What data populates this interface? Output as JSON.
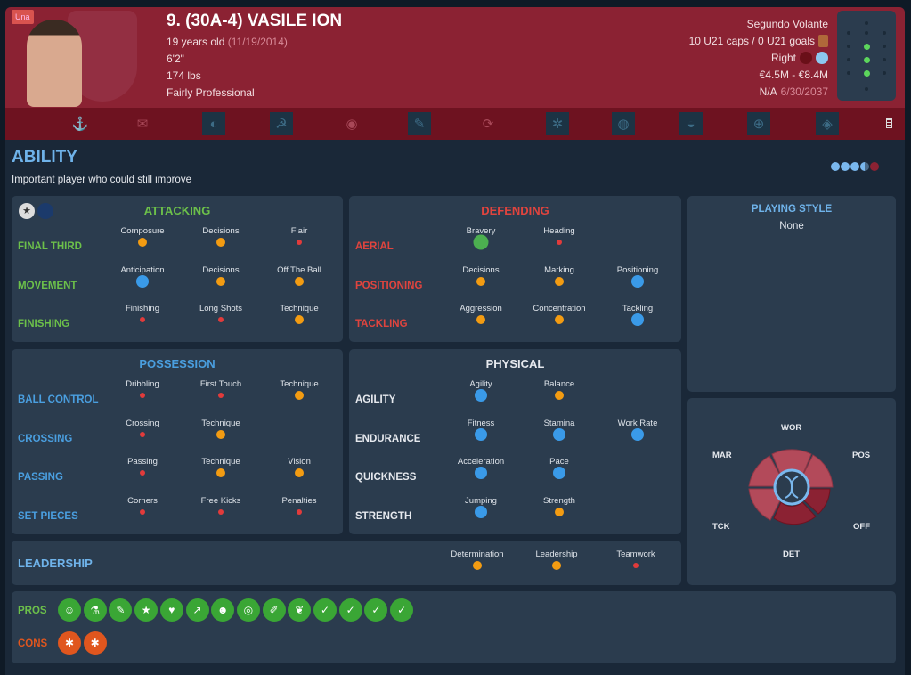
{
  "header": {
    "tag": "Una",
    "title": "9. (30A-4) VASILE ION",
    "age": "19 years old",
    "dob": "(11/19/2014)",
    "height": "6'2\"",
    "weight": "174 lbs",
    "personality": "Fairly Professional",
    "position": "Segundo Volante",
    "caps": "10 U21 caps / 0 U21 goals",
    "foot": "Right",
    "value": "€4.5M - €8.4M",
    "contract_status": "N/A",
    "contract_end": "6/30/2037"
  },
  "ability": {
    "title": "ABILITY",
    "description": "Important player who could still improve",
    "stars": 4.5
  },
  "sections": {
    "attacking": {
      "title": "ATTACKING",
      "color": "#6cc04a",
      "rows": [
        {
          "label": "FINAL THIRD",
          "attrs": [
            {
              "name": "Composure",
              "level": "ok"
            },
            {
              "name": "Decisions",
              "level": "ok"
            },
            {
              "name": "Flair",
              "level": "weak"
            }
          ]
        },
        {
          "label": "MOVEMENT",
          "attrs": [
            {
              "name": "Anticipation",
              "level": "good"
            },
            {
              "name": "Decisions",
              "level": "ok"
            },
            {
              "name": "Off The Ball",
              "level": "ok"
            }
          ]
        },
        {
          "label": "FINISHING",
          "attrs": [
            {
              "name": "Finishing",
              "level": "weak"
            },
            {
              "name": "Long Shots",
              "level": "weak"
            },
            {
              "name": "Technique",
              "level": "ok"
            }
          ]
        }
      ]
    },
    "defending": {
      "title": "DEFENDING",
      "color": "#e0443e",
      "rows": [
        {
          "label": "AERIAL",
          "attrs": [
            {
              "name": "Bravery",
              "level": "great"
            },
            {
              "name": "Heading",
              "level": "weak"
            }
          ]
        },
        {
          "label": "POSITIONING",
          "attrs": [
            {
              "name": "Decisions",
              "level": "ok"
            },
            {
              "name": "Marking",
              "level": "ok"
            },
            {
              "name": "Positioning",
              "level": "good"
            }
          ]
        },
        {
          "label": "TACKLING",
          "attrs": [
            {
              "name": "Aggression",
              "level": "ok"
            },
            {
              "name": "Concentration",
              "level": "ok"
            },
            {
              "name": "Tackling",
              "level": "good"
            }
          ]
        }
      ]
    },
    "possession": {
      "title": "POSSESSION",
      "color": "#4a9fe0",
      "rows": [
        {
          "label": "BALL CONTROL",
          "attrs": [
            {
              "name": "Dribbling",
              "level": "weak"
            },
            {
              "name": "First Touch",
              "level": "weak"
            },
            {
              "name": "Technique",
              "level": "ok"
            }
          ]
        },
        {
          "label": "CROSSING",
          "attrs": [
            {
              "name": "Crossing",
              "level": "weak"
            },
            {
              "name": "Technique",
              "level": "ok"
            }
          ]
        },
        {
          "label": "PASSING",
          "attrs": [
            {
              "name": "Passing",
              "level": "weak"
            },
            {
              "name": "Technique",
              "level": "ok"
            },
            {
              "name": "Vision",
              "level": "ok"
            }
          ]
        },
        {
          "label": "SET PIECES",
          "attrs": [
            {
              "name": "Corners",
              "level": "weak"
            },
            {
              "name": "Free Kicks",
              "level": "weak"
            },
            {
              "name": "Penalties",
              "level": "weak"
            }
          ]
        }
      ]
    },
    "physical": {
      "title": "PHYSICAL",
      "color": "#e6e9ee",
      "rows": [
        {
          "label": "AGILITY",
          "attrs": [
            {
              "name": "Agility",
              "level": "good"
            },
            {
              "name": "Balance",
              "level": "ok"
            }
          ]
        },
        {
          "label": "ENDURANCE",
          "attrs": [
            {
              "name": "Fitness",
              "level": "good"
            },
            {
              "name": "Stamina",
              "level": "good"
            },
            {
              "name": "Work Rate",
              "level": "good"
            }
          ]
        },
        {
          "label": "QUICKNESS",
          "attrs": [
            {
              "name": "Acceleration",
              "level": "good"
            },
            {
              "name": "Pace",
              "level": "good"
            }
          ]
        },
        {
          "label": "STRENGTH",
          "attrs": [
            {
              "name": "Jumping",
              "level": "good"
            },
            {
              "name": "Strength",
              "level": "ok"
            }
          ]
        }
      ]
    },
    "leadership": {
      "title": "LEADERSHIP",
      "color": "#4a9fe0",
      "rows": [
        {
          "label": "LEADERSHIP",
          "attrs": [
            {
              "name": "Determination",
              "level": "ok"
            },
            {
              "name": "Leadership",
              "level": "ok"
            },
            {
              "name": "Teamwork",
              "level": "weak"
            }
          ]
        }
      ]
    }
  },
  "playing_style": {
    "title": "PLAYING STYLE",
    "value": "None"
  },
  "wheel": {
    "labels": [
      "WOR",
      "POS",
      "OFF",
      "DET",
      "TCK",
      "MAR"
    ]
  },
  "traits": {
    "pros_label": "PROS",
    "cons_label": "CONS",
    "pros_count": 14,
    "cons_count": 2
  },
  "colors": {
    "header": "#8b2233",
    "panel": "#2b3c4e",
    "ok": "#f39c12",
    "weak": "#e23b3b",
    "good": "#3a9ae8",
    "great": "#4caf50"
  }
}
